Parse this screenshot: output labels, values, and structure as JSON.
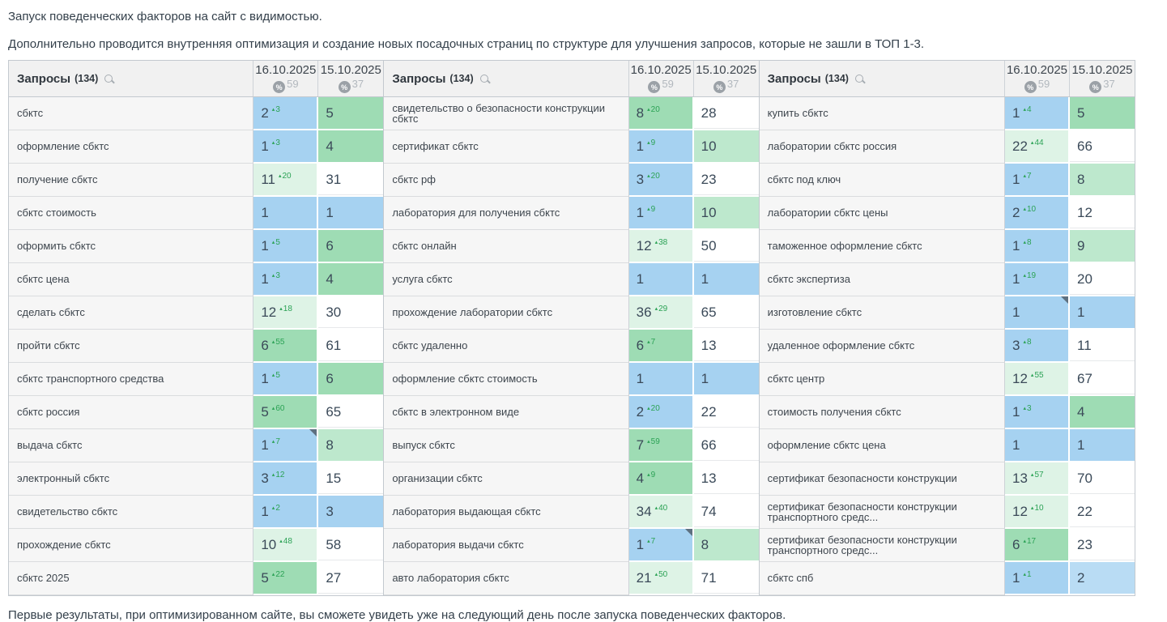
{
  "intro": {
    "line1": "Запуск поведенческих факторов на сайт с видимостью.",
    "line2": "Дополнительно проводится внутренняя оптимизация и создание новых посадочных страниц по структуре для улучшения запросов, которые не зашли в ТОП 1-3."
  },
  "footer": {
    "text": "Первые результаты, при оптимизированном сайте, вы сможете увидеть уже на следующий день после запуска поведенческих факторов."
  },
  "icons": {
    "up_arrow": "▴",
    "search": "magnifier",
    "percent": "%"
  },
  "table": {
    "header": {
      "queries_label": "Запросы",
      "queries_count": "(134)",
      "date1": "16.10.2025",
      "date1_visibility": "59",
      "date2": "15.10.2025",
      "date2_visibility": "37",
      "percent_symbol": "%"
    },
    "colors": {
      "blue": "#a6d2f1",
      "blue2": "#b9dcf4",
      "green": "#9edcb4",
      "green2": "#bde8cd",
      "green3": "#def3e6",
      "delta_green": "#2ba255",
      "note_marker": "#5d7080"
    },
    "groups": [
      {
        "rows": [
          {
            "query": "сбктс",
            "d1": {
              "v": "2",
              "delta": "3",
              "bg": "blue"
            },
            "d2": {
              "v": "5",
              "bg": "green"
            },
            "note": false
          },
          {
            "query": "оформление сбктс",
            "d1": {
              "v": "1",
              "delta": "3",
              "bg": "blue"
            },
            "d2": {
              "v": "4",
              "bg": "green"
            },
            "note": false
          },
          {
            "query": "получение сбктс",
            "d1": {
              "v": "11",
              "delta": "20",
              "bg": "green3"
            },
            "d2": {
              "v": "31",
              "bg": "white"
            },
            "note": false
          },
          {
            "query": "сбктс стоимость",
            "d1": {
              "v": "1",
              "delta": "",
              "bg": "blue"
            },
            "d2": {
              "v": "1",
              "bg": "blue"
            },
            "note": false
          },
          {
            "query": "оформить сбктс",
            "d1": {
              "v": "1",
              "delta": "5",
              "bg": "blue"
            },
            "d2": {
              "v": "6",
              "bg": "green"
            },
            "note": false
          },
          {
            "query": "сбктс цена",
            "d1": {
              "v": "1",
              "delta": "3",
              "bg": "blue"
            },
            "d2": {
              "v": "4",
              "bg": "green"
            },
            "note": false
          },
          {
            "query": "сделать сбктс",
            "d1": {
              "v": "12",
              "delta": "18",
              "bg": "green3"
            },
            "d2": {
              "v": "30",
              "bg": "white"
            },
            "note": false
          },
          {
            "query": "пройти сбктс",
            "d1": {
              "v": "6",
              "delta": "55",
              "bg": "green"
            },
            "d2": {
              "v": "61",
              "bg": "white"
            },
            "note": false
          },
          {
            "query": "сбктс транспортного средства",
            "d1": {
              "v": "1",
              "delta": "5",
              "bg": "blue"
            },
            "d2": {
              "v": "6",
              "bg": "green"
            },
            "note": false
          },
          {
            "query": "сбктс россия",
            "d1": {
              "v": "5",
              "delta": "60",
              "bg": "green"
            },
            "d2": {
              "v": "65",
              "bg": "white"
            },
            "note": false
          },
          {
            "query": "выдача сбктс",
            "d1": {
              "v": "1",
              "delta": "7",
              "bg": "blue"
            },
            "d2": {
              "v": "8",
              "bg": "green2"
            },
            "note": true
          },
          {
            "query": "электронный сбктс",
            "d1": {
              "v": "3",
              "delta": "12",
              "bg": "blue"
            },
            "d2": {
              "v": "15",
              "bg": "white"
            },
            "note": false
          },
          {
            "query": "свидетельство сбктс",
            "d1": {
              "v": "1",
              "delta": "2",
              "bg": "blue"
            },
            "d2": {
              "v": "3",
              "bg": "blue"
            },
            "note": false
          },
          {
            "query": "прохождение сбктс",
            "d1": {
              "v": "10",
              "delta": "48",
              "bg": "green3"
            },
            "d2": {
              "v": "58",
              "bg": "white"
            },
            "note": false
          },
          {
            "query": "сбктс 2025",
            "d1": {
              "v": "5",
              "delta": "22",
              "bg": "green"
            },
            "d2": {
              "v": "27",
              "bg": "white"
            },
            "note": false
          }
        ]
      },
      {
        "rows": [
          {
            "query": "свидетельство о безопасности конструкции сбктс",
            "d1": {
              "v": "8",
              "delta": "20",
              "bg": "green"
            },
            "d2": {
              "v": "28",
              "bg": "white"
            },
            "note": false
          },
          {
            "query": "сертификат сбктс",
            "d1": {
              "v": "1",
              "delta": "9",
              "bg": "blue"
            },
            "d2": {
              "v": "10",
              "bg": "green2"
            },
            "note": false
          },
          {
            "query": "сбктс рф",
            "d1": {
              "v": "3",
              "delta": "20",
              "bg": "blue"
            },
            "d2": {
              "v": "23",
              "bg": "white"
            },
            "note": false
          },
          {
            "query": "лаборатория для получения сбктс",
            "d1": {
              "v": "1",
              "delta": "9",
              "bg": "blue"
            },
            "d2": {
              "v": "10",
              "bg": "green2"
            },
            "note": false
          },
          {
            "query": "сбктс онлайн",
            "d1": {
              "v": "12",
              "delta": "38",
              "bg": "green3"
            },
            "d2": {
              "v": "50",
              "bg": "white"
            },
            "note": false
          },
          {
            "query": "услуга сбктс",
            "d1": {
              "v": "1",
              "delta": "",
              "bg": "blue"
            },
            "d2": {
              "v": "1",
              "bg": "blue"
            },
            "note": false
          },
          {
            "query": "прохождение лаборатории сбктс",
            "d1": {
              "v": "36",
              "delta": "29",
              "bg": "green3"
            },
            "d2": {
              "v": "65",
              "bg": "white"
            },
            "note": false
          },
          {
            "query": "сбктс удаленно",
            "d1": {
              "v": "6",
              "delta": "7",
              "bg": "green"
            },
            "d2": {
              "v": "13",
              "bg": "white"
            },
            "note": false
          },
          {
            "query": "оформление сбктс стоимость",
            "d1": {
              "v": "1",
              "delta": "",
              "bg": "blue"
            },
            "d2": {
              "v": "1",
              "bg": "blue"
            },
            "note": false
          },
          {
            "query": "сбктс в электронном виде",
            "d1": {
              "v": "2",
              "delta": "20",
              "bg": "blue"
            },
            "d2": {
              "v": "22",
              "bg": "white"
            },
            "note": false
          },
          {
            "query": "выпуск сбктс",
            "d1": {
              "v": "7",
              "delta": "59",
              "bg": "green"
            },
            "d2": {
              "v": "66",
              "bg": "white"
            },
            "note": false
          },
          {
            "query": "организации сбктс",
            "d1": {
              "v": "4",
              "delta": "9",
              "bg": "green"
            },
            "d2": {
              "v": "13",
              "bg": "white"
            },
            "note": false
          },
          {
            "query": "лаборатория выдающая сбктс",
            "d1": {
              "v": "34",
              "delta": "40",
              "bg": "green3"
            },
            "d2": {
              "v": "74",
              "bg": "white"
            },
            "note": false
          },
          {
            "query": "лаборатория выдачи сбктс",
            "d1": {
              "v": "1",
              "delta": "7",
              "bg": "blue"
            },
            "d2": {
              "v": "8",
              "bg": "green2"
            },
            "note": true
          },
          {
            "query": "авто лаборатория сбктс",
            "d1": {
              "v": "21",
              "delta": "50",
              "bg": "green3"
            },
            "d2": {
              "v": "71",
              "bg": "white"
            },
            "note": false
          }
        ]
      },
      {
        "rows": [
          {
            "query": "купить сбктс",
            "d1": {
              "v": "1",
              "delta": "4",
              "bg": "blue"
            },
            "d2": {
              "v": "5",
              "bg": "green"
            },
            "note": false
          },
          {
            "query": "лаборатории сбктс россия",
            "d1": {
              "v": "22",
              "delta": "44",
              "bg": "green3"
            },
            "d2": {
              "v": "66",
              "bg": "white"
            },
            "note": false
          },
          {
            "query": "сбктс под ключ",
            "d1": {
              "v": "1",
              "delta": "7",
              "bg": "blue"
            },
            "d2": {
              "v": "8",
              "bg": "green2"
            },
            "note": false
          },
          {
            "query": "лаборатории сбктс цены",
            "d1": {
              "v": "2",
              "delta": "10",
              "bg": "blue"
            },
            "d2": {
              "v": "12",
              "bg": "white"
            },
            "note": false
          },
          {
            "query": "таможенное оформление сбктс",
            "d1": {
              "v": "1",
              "delta": "8",
              "bg": "blue"
            },
            "d2": {
              "v": "9",
              "bg": "green2"
            },
            "note": false
          },
          {
            "query": "сбктс экспертиза",
            "d1": {
              "v": "1",
              "delta": "19",
              "bg": "blue"
            },
            "d2": {
              "v": "20",
              "bg": "white"
            },
            "note": false
          },
          {
            "query": "изготовление сбктс",
            "d1": {
              "v": "1",
              "delta": "",
              "bg": "blue"
            },
            "d2": {
              "v": "1",
              "bg": "blue"
            },
            "note": true
          },
          {
            "query": "удаленное оформление сбктс",
            "d1": {
              "v": "3",
              "delta": "8",
              "bg": "blue"
            },
            "d2": {
              "v": "11",
              "bg": "white"
            },
            "note": false
          },
          {
            "query": "сбктс центр",
            "d1": {
              "v": "12",
              "delta": "55",
              "bg": "green3"
            },
            "d2": {
              "v": "67",
              "bg": "white"
            },
            "note": false
          },
          {
            "query": "стоимость получения сбктс",
            "d1": {
              "v": "1",
              "delta": "3",
              "bg": "blue"
            },
            "d2": {
              "v": "4",
              "bg": "green"
            },
            "note": false
          },
          {
            "query": "оформление сбктс цена",
            "d1": {
              "v": "1",
              "delta": "",
              "bg": "blue"
            },
            "d2": {
              "v": "1",
              "bg": "blue"
            },
            "note": false
          },
          {
            "query": "сертификат безопасности конструкции",
            "d1": {
              "v": "13",
              "delta": "57",
              "bg": "green3"
            },
            "d2": {
              "v": "70",
              "bg": "white"
            },
            "note": false
          },
          {
            "query": "сертификат безопасности конструкции транспортного средс...",
            "d1": {
              "v": "12",
              "delta": "10",
              "bg": "green3"
            },
            "d2": {
              "v": "22",
              "bg": "white"
            },
            "note": false
          },
          {
            "query": "сертификат безопасности конструкции транспортного средс...",
            "d1": {
              "v": "6",
              "delta": "17",
              "bg": "green"
            },
            "d2": {
              "v": "23",
              "bg": "white"
            },
            "note": false
          },
          {
            "query": "сбктс спб",
            "d1": {
              "v": "1",
              "delta": "1",
              "bg": "blue"
            },
            "d2": {
              "v": "2",
              "bg": "blue2"
            },
            "note": false
          }
        ]
      }
    ]
  }
}
